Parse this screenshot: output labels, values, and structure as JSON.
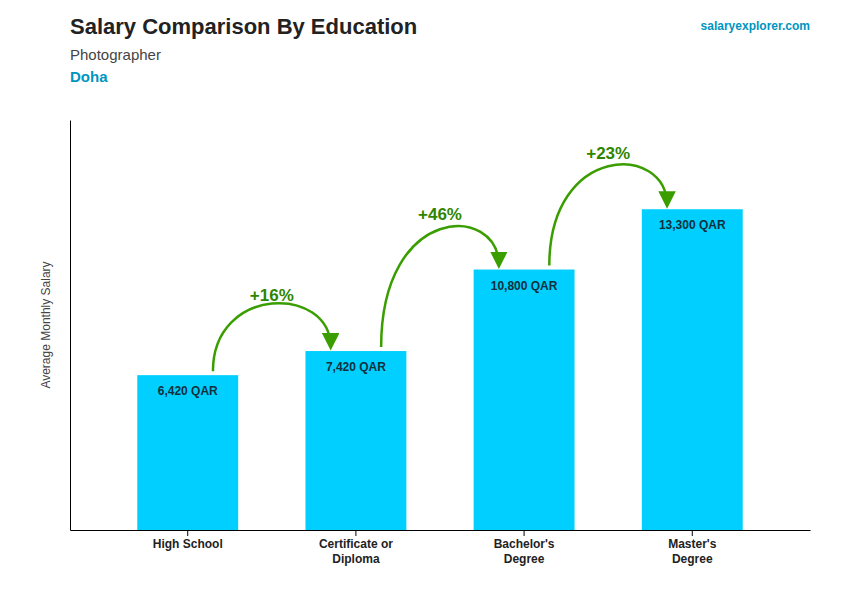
{
  "chart_data": {
    "type": "bar",
    "title": "Salary Comparison By Education",
    "subtitle": "Photographer",
    "annotations": [
      "Doha",
      "salaryexplorer.com"
    ],
    "ylabel": "Average Monthly Salary",
    "categories": [
      "High School",
      "Certificate or\nDiploma",
      "Bachelor's\nDegree",
      "Master's\nDegree"
    ],
    "values": [
      6420,
      7420,
      10800,
      13300
    ],
    "value_labels": [
      "6,420 QAR",
      "7,420 QAR",
      "10,800 QAR",
      "13,300 QAR"
    ],
    "changes": [
      16,
      46,
      23
    ],
    "change_labels": [
      "+16%",
      "+46%",
      "+23%"
    ],
    "color": "#00cfff",
    "ylim": [
      0,
      17000
    ],
    "data_labels": true,
    "tick_labels": "x",
    "grid": false
  }
}
